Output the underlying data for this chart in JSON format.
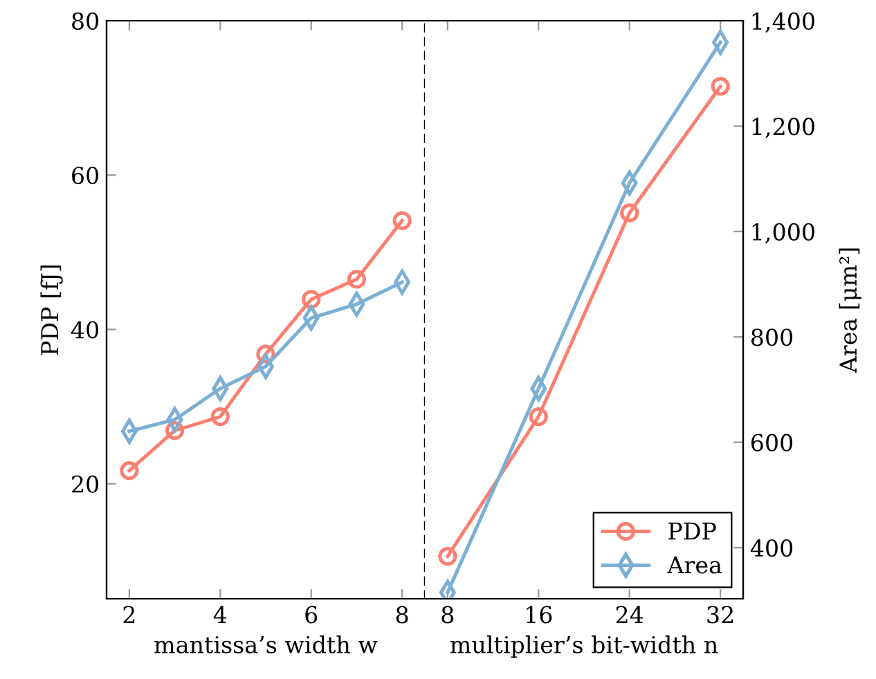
{
  "chart_data": [
    {
      "type": "line",
      "xlabel": "mantissa’s width w",
      "ylabel": "PDP [fJ]",
      "x": [
        2,
        3,
        4,
        5,
        6,
        7,
        8
      ],
      "xlim": [
        1.5,
        8.5
      ],
      "xticks": [
        2,
        4,
        6,
        8
      ],
      "ylim": [
        5.1,
        80
      ],
      "yticks": [
        20,
        40,
        60,
        80
      ],
      "y2lim": [
        303,
        1400
      ],
      "grid": false,
      "legend": false,
      "series": [
        {
          "color": "#fa7f70",
          "marker": "circle",
          "values": [
            21.7,
            26.9,
            28.7,
            36.8,
            43.9,
            46.5,
            54.1
          ]
        },
        {
          "color": "#7bafd4",
          "marker": "diamond",
          "axis": "y2",
          "values": [
            621,
            643,
            702,
            744,
            836,
            862,
            904
          ]
        }
      ]
    },
    {
      "type": "line",
      "xlabel": "multiplier’s bit-width n",
      "y2label": "Area [μm²]",
      "x": [
        8,
        16,
        24,
        32
      ],
      "xlim": [
        6,
        34
      ],
      "xticks": [
        8,
        16,
        24,
        32
      ],
      "ylim": [
        5.1,
        80
      ],
      "y2lim": [
        303,
        1400
      ],
      "y2ticks": [
        {
          "value": 400,
          "label": "400"
        },
        {
          "value": 600,
          "label": "600"
        },
        {
          "value": 800,
          "label": "800"
        },
        {
          "value": 1000,
          "label": "1,000"
        },
        {
          "value": 1200,
          "label": "1,200"
        },
        {
          "value": 1400,
          "label": "1,400"
        }
      ],
      "grid": false,
      "legend": "bottom right",
      "series": [
        {
          "name": "PDP",
          "color": "#fa7f70",
          "marker": "circle",
          "values": [
            10.6,
            28.7,
            55.1,
            71.5
          ]
        },
        {
          "name": "Area",
          "color": "#7bafd4",
          "marker": "diamond",
          "axis": "y2",
          "values": [
            315,
            702,
            1092,
            1359
          ]
        }
      ]
    }
  ]
}
